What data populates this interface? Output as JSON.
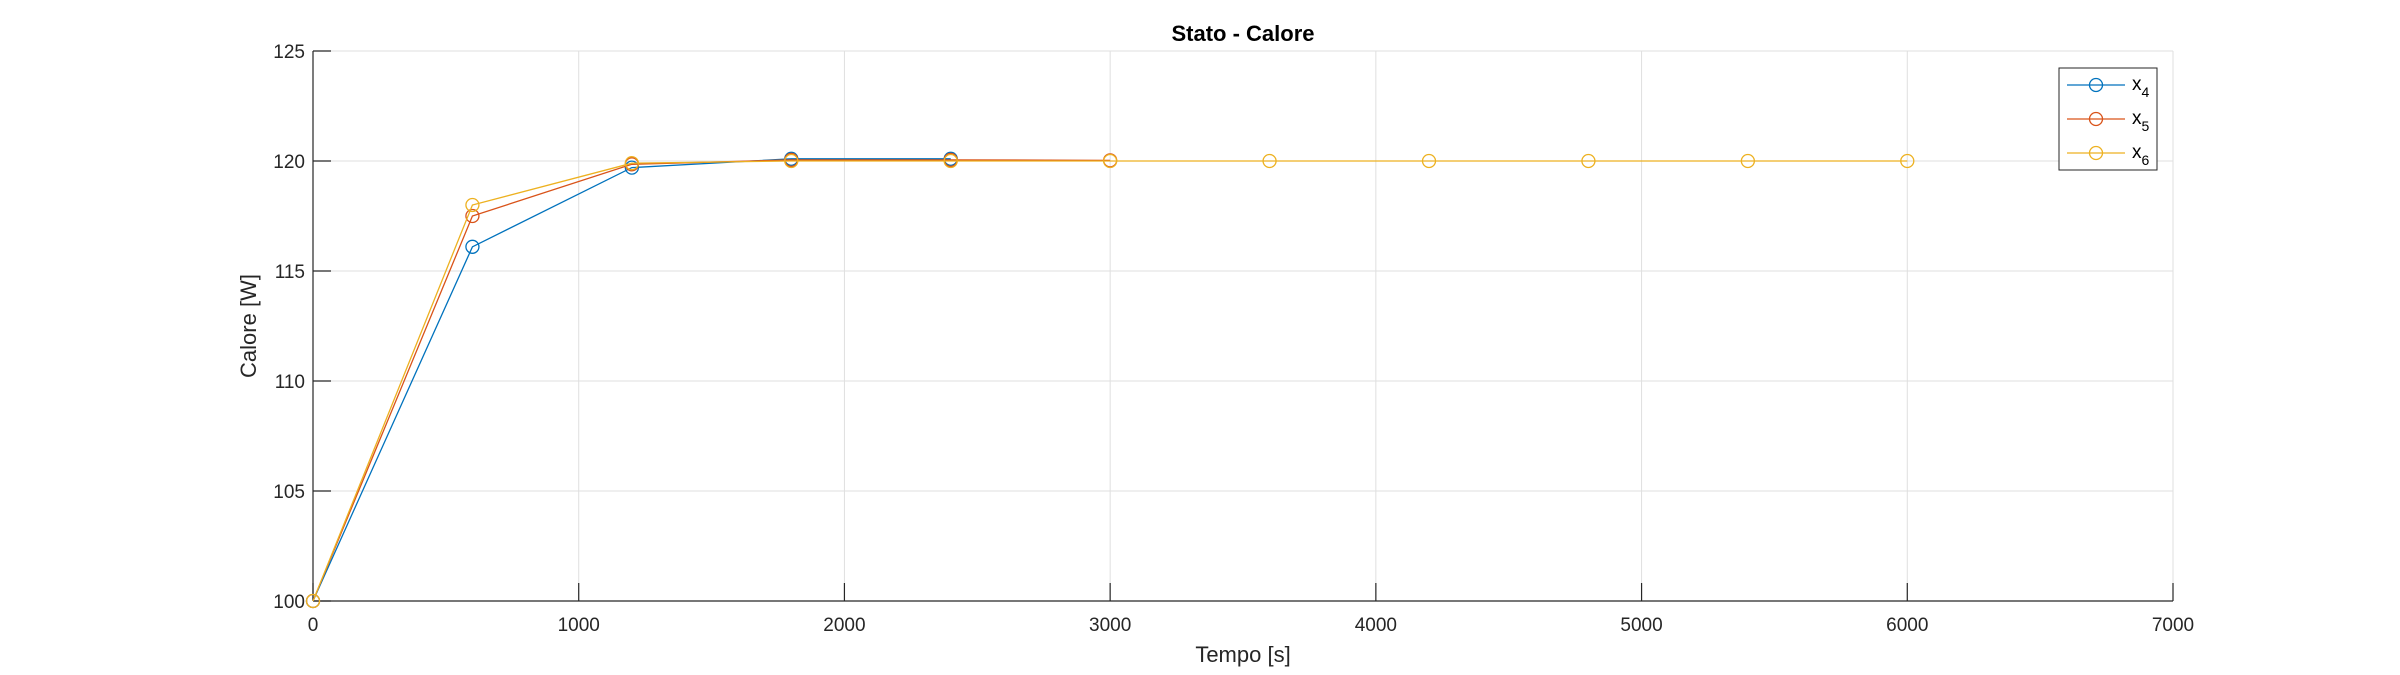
{
  "chart_data": {
    "type": "line",
    "title": "Stato - Calore",
    "xlabel": "Tempo [s]",
    "ylabel": "Calore [W]",
    "xlim": [
      0,
      7000
    ],
    "ylim": [
      100,
      125
    ],
    "xticks": [
      0,
      1000,
      2000,
      3000,
      4000,
      5000,
      6000,
      7000
    ],
    "yticks": [
      100,
      105,
      110,
      115,
      120,
      125
    ],
    "xtick_labels": [
      "0",
      "1000",
      "2000",
      "3000",
      "4000",
      "5000",
      "6000",
      "7000"
    ],
    "ytick_labels": [
      "100",
      "105",
      "110",
      "115",
      "120",
      "125"
    ],
    "grid": true,
    "legend_position": "top-right",
    "marker": "circle",
    "series": [
      {
        "name": "x",
        "subscript": "4",
        "color": "#0072BD",
        "x": [
          0,
          600,
          1200,
          1800,
          2400
        ],
        "y": [
          100,
          116.1,
          119.7,
          120.1,
          120.1
        ]
      },
      {
        "name": "x",
        "subscript": "5",
        "color": "#D95319",
        "x": [
          0,
          600,
          1200,
          1800,
          2400,
          3000
        ],
        "y": [
          100,
          117.5,
          119.85,
          120.05,
          120.05,
          120.03
        ]
      },
      {
        "name": "x",
        "subscript": "6",
        "color": "#EDB120",
        "x": [
          0,
          600,
          1200,
          1800,
          2400,
          3000,
          3600,
          4200,
          4800,
          5400,
          6000
        ],
        "y": [
          100,
          118.0,
          119.9,
          120.0,
          120.0,
          120.0,
          120.0,
          120.0,
          120.0,
          120.0,
          120.0
        ]
      }
    ]
  }
}
